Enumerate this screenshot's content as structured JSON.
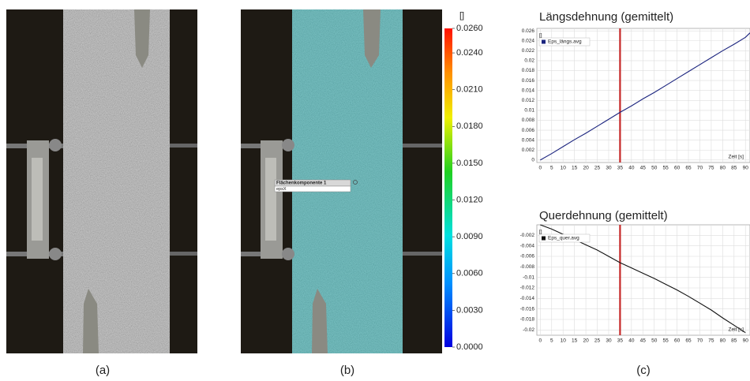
{
  "panel_labels": [
    "(a)",
    "(b)",
    "(c)"
  ],
  "overlay": {
    "title": "Flächenkomponente 1",
    "row": "epsX"
  },
  "colorbar": {
    "unit": "[]",
    "lim": [
      0,
      0.026
    ],
    "ticks": [
      {
        "value": 0.026,
        "label": "0.0260"
      },
      {
        "value": 0.024,
        "label": "0.0240"
      },
      {
        "value": 0.021,
        "label": "0.0210"
      },
      {
        "value": 0.018,
        "label": "0.0180"
      },
      {
        "value": 0.015,
        "label": "0.0150"
      },
      {
        "value": 0.012,
        "label": "0.0120"
      },
      {
        "value": 0.009,
        "label": "0.0090"
      },
      {
        "value": 0.006,
        "label": "0.0060"
      },
      {
        "value": 0.003,
        "label": "0.0030"
      },
      {
        "value": 0,
        "label": "0.0000"
      }
    ]
  },
  "chart_data": [
    {
      "type": "line",
      "title": "Längsdehnung (gemittelt)",
      "x_label": "Zeit [s]",
      "y_label": "[]",
      "x": [
        0,
        5,
        10,
        15,
        20,
        25,
        30,
        35,
        40,
        45,
        50,
        55,
        60,
        65,
        70,
        75,
        80,
        85,
        90,
        92
      ],
      "series": [
        {
          "name": "Eps_längs.avg",
          "color": "#1a237e",
          "values": [
            0,
            0.0013,
            0.0027,
            0.0041,
            0.0054,
            0.0068,
            0.0082,
            0.0096,
            0.0109,
            0.0123,
            0.0136,
            0.015,
            0.0164,
            0.0178,
            0.0192,
            0.0206,
            0.022,
            0.0233,
            0.0247,
            0.0256
          ]
        }
      ],
      "xlim": [
        -1.5,
        92
      ],
      "ylim": [
        -0.0005,
        0.0265
      ],
      "xticks": [
        0,
        5,
        10,
        15,
        20,
        25,
        30,
        35,
        40,
        45,
        50,
        55,
        60,
        65,
        70,
        75,
        80,
        85,
        90
      ],
      "yticks": [
        0,
        0.002,
        0.004,
        0.006,
        0.008,
        0.01,
        0.012,
        0.014,
        0.016,
        0.018,
        0.02,
        0.022,
        0.024,
        0.026
      ],
      "grid": true,
      "legend": "upper left",
      "vline": {
        "x": 35,
        "color": "#c62828"
      }
    },
    {
      "type": "line",
      "title": "Querdehnung (gemittelt)",
      "x_label": "Zeit [s]",
      "y_label": "[]",
      "x": [
        0,
        5,
        10,
        15,
        20,
        25,
        30,
        35,
        40,
        45,
        50,
        55,
        60,
        65,
        70,
        75,
        80,
        85,
        90
      ],
      "series": [
        {
          "name": "Eps_quer.avg",
          "color": "#111111",
          "values": [
            0,
            -0.0008,
            -0.0018,
            -0.0028,
            -0.0038,
            -0.0048,
            -0.006,
            -0.0072,
            -0.0082,
            -0.0092,
            -0.0102,
            -0.0113,
            -0.0124,
            -0.0136,
            -0.0149,
            -0.0162,
            -0.0177,
            -0.0191,
            -0.0205
          ]
        }
      ],
      "xlim": [
        -1.5,
        92
      ],
      "ylim": [
        -0.021,
        0
      ],
      "xticks": [
        0,
        5,
        10,
        15,
        20,
        25,
        30,
        35,
        40,
        45,
        50,
        55,
        60,
        65,
        70,
        75,
        80,
        85,
        90
      ],
      "yticks": [
        -0.002,
        -0.004,
        -0.006,
        -0.008,
        -0.01,
        -0.012,
        -0.014,
        -0.016,
        -0.018,
        -0.02
      ],
      "grid": true,
      "legend": "upper left",
      "vline": {
        "x": 35,
        "color": "#c62828"
      }
    }
  ]
}
